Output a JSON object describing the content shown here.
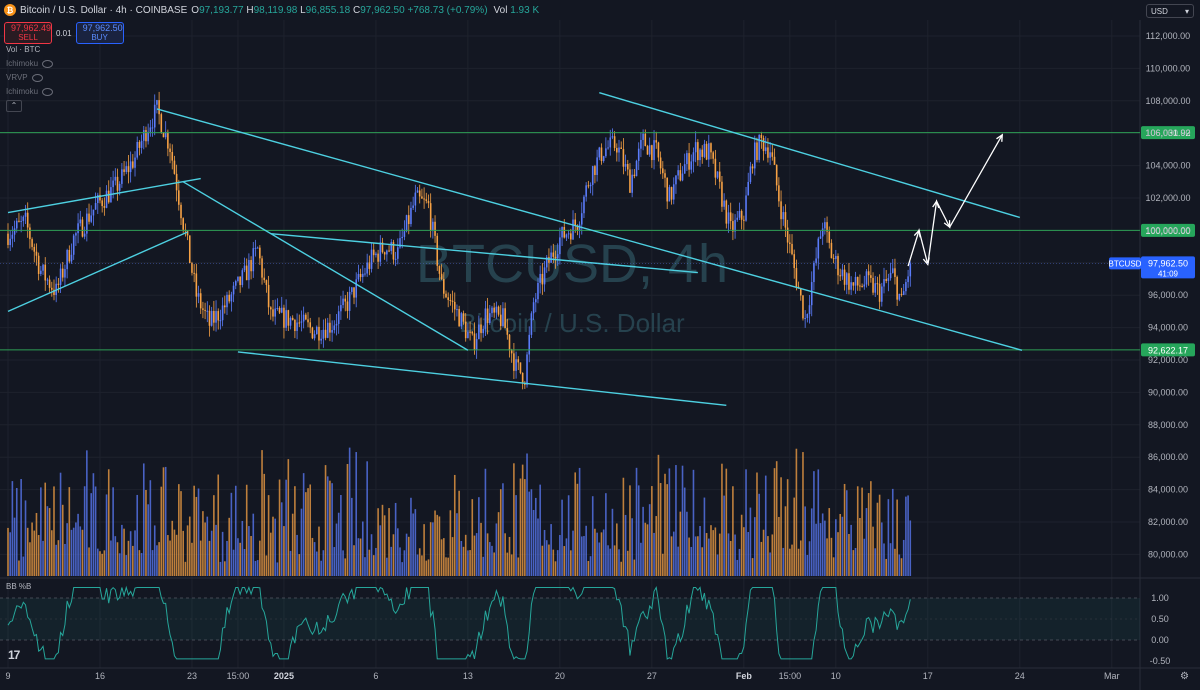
{
  "header": {
    "symbol_title": "Bitcoin / U.S. Dollar · 4h · COINBASE",
    "ohlc": {
      "open_label": "O",
      "open": "97,193.77",
      "high_label": "H",
      "high": "98,119.98",
      "low_label": "L",
      "low": "96,855.18",
      "close_label": "C",
      "close": "97,962.50",
      "change": "+768.73 (+0.79%)"
    },
    "vol_label": "Vol",
    "vol_value": "1.93 K"
  },
  "trade": {
    "sell_price": "97,962.49",
    "sell_label": "SELL",
    "spread": "0.01",
    "buy_price": "97,962.50",
    "buy_label": "BUY"
  },
  "indicators": [
    {
      "label": "Vol · BTC",
      "hidden": false
    },
    {
      "label": "Ichimoku",
      "hidden": true
    },
    {
      "label": "VRVP",
      "hidden": true
    },
    {
      "label": "Ichimoku",
      "hidden": true
    }
  ],
  "currency_selector": "USD",
  "watermark": {
    "symbol": "BTCUSD, 4h",
    "name": "Bitcoin / U.S. Dollar"
  },
  "price_axis": {
    "ticks": [
      "112,000.00",
      "110,000.00",
      "108,000.00",
      "106,000.00",
      "104,000.00",
      "102,000.00",
      "100,000.00",
      "98,000.00",
      "96,000.00",
      "94,000.00",
      "92,000.00",
      "90,000.00",
      "88,000.00",
      "86,000.00",
      "84,000.00",
      "82,000.00",
      "80,000.00"
    ],
    "tick_values": [
      112000,
      110000,
      108000,
      106000,
      104000,
      102000,
      100000,
      98000,
      96000,
      94000,
      92000,
      90000,
      88000,
      86000,
      84000,
      82000,
      80000
    ],
    "levels": [
      {
        "value": 106031.92,
        "label": "106,031.92"
      },
      {
        "value": 100000,
        "label": "100,000.00"
      },
      {
        "value": 92622.17,
        "label": "92,622.17"
      }
    ],
    "current": {
      "ticker": "BTCUSD",
      "price": "97,962.50",
      "value": 97962.5,
      "countdown": "41:09"
    }
  },
  "bb_pane": {
    "label": "BB %B",
    "ticks": [
      "1.00",
      "0.50",
      "0.00",
      "-0.50"
    ],
    "tick_values": [
      1,
      0.5,
      0,
      -0.5
    ]
  },
  "time_axis": {
    "labels": [
      "9",
      "16",
      "23",
      "15:00",
      "2025",
      "6",
      "13",
      "20",
      "27",
      "Feb",
      "15:00",
      "10",
      "17",
      "24",
      "Mar"
    ],
    "bar_index": [
      0,
      42,
      84,
      105,
      126,
      168,
      210,
      252,
      294,
      336,
      357,
      378,
      420,
      462,
      504
    ],
    "bold": [
      "2025",
      "Feb"
    ]
  },
  "colors": {
    "background": "#131722",
    "up": "#5b7cfa",
    "down": "#f7a245",
    "trendline": "#4dd0e1",
    "level_line": "#2e9e55",
    "level_label_bg": "#26a65b",
    "current_bg": "#2962ff",
    "bb_line": "#26a69a",
    "projection": "#ffffff"
  },
  "chart_data": {
    "type": "candlestick",
    "title": "Bitcoin / U.S. Dollar · 4h · COINBASE",
    "y_range": [
      79000,
      113000
    ],
    "bar_count_visible": 413,
    "time_range": [
      "2024-12-09",
      "2025-02-12"
    ],
    "anchors": [
      {
        "bar": 0,
        "price": 99800
      },
      {
        "bar": 8,
        "price": 100500
      },
      {
        "bar": 15,
        "price": 97500
      },
      {
        "bar": 22,
        "price": 96200
      },
      {
        "bar": 30,
        "price": 99500
      },
      {
        "bar": 40,
        "price": 101500
      },
      {
        "bar": 50,
        "price": 102800
      },
      {
        "bar": 58,
        "price": 104500
      },
      {
        "bar": 64,
        "price": 106500
      },
      {
        "bar": 68,
        "price": 107400
      },
      {
        "bar": 74,
        "price": 105200
      },
      {
        "bar": 80,
        "price": 100500
      },
      {
        "bar": 86,
        "price": 96000
      },
      {
        "bar": 92,
        "price": 94200
      },
      {
        "bar": 100,
        "price": 95500
      },
      {
        "bar": 108,
        "price": 97200
      },
      {
        "bar": 114,
        "price": 98800
      },
      {
        "bar": 120,
        "price": 94700
      },
      {
        "bar": 130,
        "price": 94500
      },
      {
        "bar": 140,
        "price": 93800
      },
      {
        "bar": 148,
        "price": 94200
      },
      {
        "bar": 155,
        "price": 95500
      },
      {
        "bar": 160,
        "price": 96800
      },
      {
        "bar": 166,
        "price": 98200
      },
      {
        "bar": 172,
        "price": 99000
      },
      {
        "bar": 178,
        "price": 98600
      },
      {
        "bar": 186,
        "price": 101900
      },
      {
        "bar": 192,
        "price": 101500
      },
      {
        "bar": 198,
        "price": 96600
      },
      {
        "bar": 206,
        "price": 94700
      },
      {
        "bar": 212,
        "price": 93000
      },
      {
        "bar": 218,
        "price": 94800
      },
      {
        "bar": 226,
        "price": 94500
      },
      {
        "bar": 232,
        "price": 91500
      },
      {
        "bar": 236,
        "price": 91000
      },
      {
        "bar": 240,
        "price": 95500
      },
      {
        "bar": 246,
        "price": 97800
      },
      {
        "bar": 252,
        "price": 99500
      },
      {
        "bar": 260,
        "price": 100500
      },
      {
        "bar": 266,
        "price": 103500
      },
      {
        "bar": 272,
        "price": 105000
      },
      {
        "bar": 278,
        "price": 105300
      },
      {
        "bar": 284,
        "price": 103000
      },
      {
        "bar": 290,
        "price": 105500
      },
      {
        "bar": 296,
        "price": 104800
      },
      {
        "bar": 302,
        "price": 102000
      },
      {
        "bar": 308,
        "price": 103800
      },
      {
        "bar": 314,
        "price": 105000
      },
      {
        "bar": 320,
        "price": 104800
      },
      {
        "bar": 324,
        "price": 103000
      },
      {
        "bar": 330,
        "price": 100000
      },
      {
        "bar": 336,
        "price": 101000
      },
      {
        "bar": 340,
        "price": 104500
      },
      {
        "bar": 344,
        "price": 105500
      },
      {
        "bar": 348,
        "price": 105000
      },
      {
        "bar": 352,
        "price": 102000
      },
      {
        "bar": 356,
        "price": 99500
      },
      {
        "bar": 360,
        "price": 97000
      },
      {
        "bar": 364,
        "price": 94500
      },
      {
        "bar": 368,
        "price": 97500
      },
      {
        "bar": 372,
        "price": 100500
      },
      {
        "bar": 376,
        "price": 98500
      },
      {
        "bar": 380,
        "price": 97500
      },
      {
        "bar": 386,
        "price": 96500
      },
      {
        "bar": 392,
        "price": 96800
      },
      {
        "bar": 398,
        "price": 96200
      },
      {
        "bar": 404,
        "price": 97300
      },
      {
        "bar": 408,
        "price": 95500
      },
      {
        "bar": 412,
        "price": 97962
      }
    ],
    "trendlines": [
      {
        "from": {
          "bar": 0,
          "price": 101100
        },
        "to": {
          "bar": 88,
          "price": 103200
        }
      },
      {
        "from": {
          "bar": 0,
          "price": 95000
        },
        "to": {
          "bar": 82,
          "price": 99900
        }
      },
      {
        "from": {
          "bar": 68,
          "price": 107500
        },
        "to": {
          "bar": 463,
          "price": 92600
        }
      },
      {
        "from": {
          "bar": 80,
          "price": 103000
        },
        "to": {
          "bar": 210,
          "price": 92600
        }
      },
      {
        "from": {
          "bar": 120,
          "price": 99800
        },
        "to": {
          "bar": 315,
          "price": 97400
        }
      },
      {
        "from": {
          "bar": 105,
          "price": 92500
        },
        "to": {
          "bar": 328,
          "price": 89200
        }
      },
      {
        "from": {
          "bar": 270,
          "price": 108500
        },
        "to": {
          "bar": 462,
          "price": 100800
        }
      }
    ],
    "projection": [
      {
        "bar": 411,
        "price": 97800
      },
      {
        "bar": 416,
        "price": 100000
      },
      {
        "bar": 420,
        "price": 97900
      },
      {
        "bar": 424,
        "price": 101800
      },
      {
        "bar": 430,
        "price": 100200
      },
      {
        "bar": 454,
        "price": 105900
      }
    ]
  }
}
